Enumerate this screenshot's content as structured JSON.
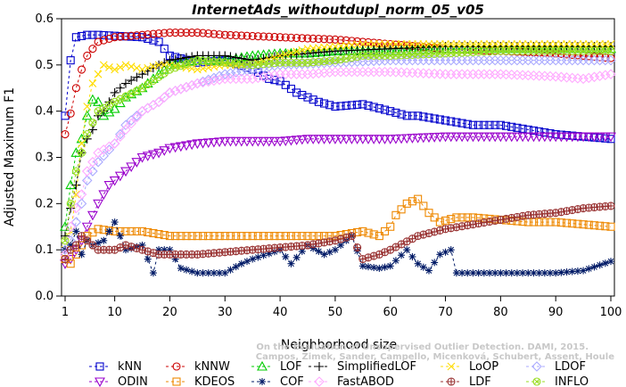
{
  "watermark": {
    "line1": "Campos, Zimek, Sander, Campello, Micenková, Schubert, Assent, Houle",
    "line2": "On the Evaluation of Unsupervised Outlier Detection. DAMI, 2015."
  },
  "chart_data": {
    "type": "line",
    "title": "InternetAds_withoutdupl_norm_05_v05",
    "xlabel": "Neighborhood size",
    "ylabel": "Adjusted Maximum F1",
    "xlim": [
      1,
      100
    ],
    "ylim": [
      0.0,
      0.6
    ],
    "xticks": [
      1,
      10,
      20,
      30,
      40,
      50,
      60,
      70,
      80,
      90,
      100
    ],
    "yticks": [
      "0.0",
      "0.1",
      "0.2",
      "0.3",
      "0.4",
      "0.5",
      "0.6"
    ],
    "grid": false,
    "legend_position": "bottom",
    "series": [
      {
        "name": "kNN",
        "color": "#0000cc",
        "marker": "square",
        "points": [
          [
            1,
            0.39
          ],
          [
            2,
            0.51
          ],
          [
            3,
            0.56
          ],
          [
            5,
            0.565
          ],
          [
            7,
            0.565
          ],
          [
            10,
            0.563
          ],
          [
            15,
            0.56
          ],
          [
            18,
            0.55
          ],
          [
            20,
            0.52
          ],
          [
            25,
            0.505
          ],
          [
            30,
            0.51
          ],
          [
            35,
            0.49
          ],
          [
            38,
            0.47
          ],
          [
            40,
            0.465
          ],
          [
            43,
            0.44
          ],
          [
            47,
            0.42
          ],
          [
            50,
            0.41
          ],
          [
            55,
            0.415
          ],
          [
            60,
            0.4
          ],
          [
            63,
            0.39
          ],
          [
            65,
            0.39
          ],
          [
            70,
            0.38
          ],
          [
            75,
            0.37
          ],
          [
            80,
            0.37
          ],
          [
            85,
            0.36
          ],
          [
            90,
            0.35
          ],
          [
            95,
            0.345
          ],
          [
            100,
            0.34
          ]
        ]
      },
      {
        "name": "kNNW",
        "color": "#cc0000",
        "marker": "circle",
        "points": [
          [
            1,
            0.35
          ],
          [
            2,
            0.395
          ],
          [
            3,
            0.45
          ],
          [
            4,
            0.49
          ],
          [
            5,
            0.52
          ],
          [
            7,
            0.55
          ],
          [
            10,
            0.56
          ],
          [
            15,
            0.565
          ],
          [
            20,
            0.57
          ],
          [
            25,
            0.57
          ],
          [
            30,
            0.565
          ],
          [
            40,
            0.56
          ],
          [
            50,
            0.555
          ],
          [
            60,
            0.545
          ],
          [
            70,
            0.535
          ],
          [
            80,
            0.53
          ],
          [
            90,
            0.525
          ],
          [
            100,
            0.515
          ]
        ]
      },
      {
        "name": "LOF",
        "color": "#00cc00",
        "marker": "triangle-up",
        "points": [
          [
            1,
            0.15
          ],
          [
            2,
            0.24
          ],
          [
            3,
            0.31
          ],
          [
            4,
            0.34
          ],
          [
            5,
            0.39
          ],
          [
            6,
            0.425
          ],
          [
            7,
            0.42
          ],
          [
            8,
            0.39
          ],
          [
            10,
            0.405
          ],
          [
            12,
            0.43
          ],
          [
            15,
            0.45
          ],
          [
            18,
            0.48
          ],
          [
            20,
            0.5
          ],
          [
            25,
            0.51
          ],
          [
            30,
            0.51
          ],
          [
            35,
            0.52
          ],
          [
            40,
            0.525
          ],
          [
            45,
            0.525
          ],
          [
            50,
            0.53
          ],
          [
            55,
            0.53
          ],
          [
            60,
            0.53
          ],
          [
            70,
            0.535
          ],
          [
            80,
            0.535
          ],
          [
            90,
            0.535
          ],
          [
            100,
            0.535
          ]
        ]
      },
      {
        "name": "SimplifiedLOF",
        "color": "#000000",
        "marker": "plus",
        "points": [
          [
            1,
            0.13
          ],
          [
            2,
            0.19
          ],
          [
            3,
            0.24
          ],
          [
            4,
            0.31
          ],
          [
            5,
            0.34
          ],
          [
            6,
            0.36
          ],
          [
            7,
            0.39
          ],
          [
            8,
            0.4
          ],
          [
            10,
            0.44
          ],
          [
            12,
            0.46
          ],
          [
            15,
            0.48
          ],
          [
            18,
            0.5
          ],
          [
            20,
            0.51
          ],
          [
            25,
            0.52
          ],
          [
            30,
            0.52
          ],
          [
            35,
            0.51
          ],
          [
            40,
            0.52
          ],
          [
            45,
            0.525
          ],
          [
            50,
            0.53
          ],
          [
            60,
            0.535
          ],
          [
            70,
            0.54
          ],
          [
            80,
            0.54
          ],
          [
            90,
            0.54
          ],
          [
            100,
            0.54
          ]
        ]
      },
      {
        "name": "LoOP",
        "color": "#ffdd00",
        "marker": "x",
        "points": [
          [
            1,
            0.1
          ],
          [
            2,
            0.14
          ],
          [
            3,
            0.22
          ],
          [
            4,
            0.33
          ],
          [
            5,
            0.41
          ],
          [
            6,
            0.46
          ],
          [
            8,
            0.5
          ],
          [
            10,
            0.49
          ],
          [
            12,
            0.5
          ],
          [
            15,
            0.49
          ],
          [
            18,
            0.5
          ],
          [
            20,
            0.5
          ],
          [
            25,
            0.49
          ],
          [
            30,
            0.5
          ],
          [
            35,
            0.5
          ],
          [
            40,
            0.52
          ],
          [
            45,
            0.535
          ],
          [
            50,
            0.54
          ],
          [
            55,
            0.545
          ],
          [
            60,
            0.545
          ],
          [
            70,
            0.545
          ],
          [
            80,
            0.545
          ],
          [
            90,
            0.545
          ],
          [
            100,
            0.545
          ]
        ]
      },
      {
        "name": "LDOF",
        "color": "#aaaaff",
        "marker": "diamond",
        "points": [
          [
            1,
            0.1
          ],
          [
            2,
            0.12
          ],
          [
            3,
            0.16
          ],
          [
            4,
            0.2
          ],
          [
            5,
            0.25
          ],
          [
            7,
            0.29
          ],
          [
            10,
            0.33
          ],
          [
            12,
            0.37
          ],
          [
            15,
            0.4
          ],
          [
            18,
            0.42
          ],
          [
            20,
            0.44
          ],
          [
            25,
            0.46
          ],
          [
            30,
            0.48
          ],
          [
            35,
            0.49
          ],
          [
            40,
            0.5
          ],
          [
            50,
            0.505
          ],
          [
            60,
            0.51
          ],
          [
            70,
            0.51
          ],
          [
            80,
            0.51
          ],
          [
            90,
            0.51
          ],
          [
            100,
            0.51
          ]
        ]
      },
      {
        "name": "ODIN",
        "color": "#9900cc",
        "marker": "triangle-down",
        "points": [
          [
            1,
            0.07
          ],
          [
            2,
            0.08
          ],
          [
            3,
            0.1
          ],
          [
            4,
            0.12
          ],
          [
            5,
            0.15
          ],
          [
            7,
            0.2
          ],
          [
            9,
            0.24
          ],
          [
            12,
            0.27
          ],
          [
            15,
            0.3
          ],
          [
            18,
            0.31
          ],
          [
            20,
            0.32
          ],
          [
            25,
            0.33
          ],
          [
            30,
            0.335
          ],
          [
            35,
            0.335
          ],
          [
            40,
            0.335
          ],
          [
            45,
            0.34
          ],
          [
            50,
            0.34
          ],
          [
            55,
            0.34
          ],
          [
            60,
            0.34
          ],
          [
            70,
            0.345
          ],
          [
            80,
            0.345
          ],
          [
            90,
            0.345
          ],
          [
            100,
            0.345
          ]
        ]
      },
      {
        "name": "KDEOS",
        "color": "#ee8800",
        "marker": "square",
        "points": [
          [
            1,
            0.08
          ],
          [
            2,
            0.07
          ],
          [
            3,
            0.09
          ],
          [
            4,
            0.11
          ],
          [
            5,
            0.13
          ],
          [
            7,
            0.145
          ],
          [
            10,
            0.14
          ],
          [
            15,
            0.14
          ],
          [
            20,
            0.13
          ],
          [
            25,
            0.13
          ],
          [
            30,
            0.13
          ],
          [
            35,
            0.13
          ],
          [
            40,
            0.13
          ],
          [
            45,
            0.13
          ],
          [
            50,
            0.13
          ],
          [
            55,
            0.14
          ],
          [
            58,
            0.13
          ],
          [
            60,
            0.15
          ],
          [
            61,
            0.175
          ],
          [
            63,
            0.2
          ],
          [
            65,
            0.21
          ],
          [
            67,
            0.18
          ],
          [
            69,
            0.16
          ],
          [
            72,
            0.17
          ],
          [
            75,
            0.17
          ],
          [
            80,
            0.165
          ],
          [
            85,
            0.16
          ],
          [
            90,
            0.16
          ],
          [
            95,
            0.155
          ],
          [
            100,
            0.15
          ]
        ]
      },
      {
        "name": "COF",
        "color": "#001a66",
        "marker": "star",
        "points": [
          [
            1,
            0.1
          ],
          [
            2,
            0.11
          ],
          [
            3,
            0.14
          ],
          [
            4,
            0.09
          ],
          [
            5,
            0.12
          ],
          [
            6,
            0.11
          ],
          [
            8,
            0.12
          ],
          [
            10,
            0.16
          ],
          [
            12,
            0.1
          ],
          [
            15,
            0.11
          ],
          [
            17,
            0.05
          ],
          [
            18,
            0.1
          ],
          [
            20,
            0.1
          ],
          [
            22,
            0.06
          ],
          [
            25,
            0.05
          ],
          [
            30,
            0.05
          ],
          [
            33,
            0.07
          ],
          [
            35,
            0.08
          ],
          [
            40,
            0.1
          ],
          [
            42,
            0.07
          ],
          [
            45,
            0.11
          ],
          [
            48,
            0.09
          ],
          [
            50,
            0.1
          ],
          [
            53,
            0.13
          ],
          [
            55,
            0.065
          ],
          [
            58,
            0.06
          ],
          [
            60,
            0.065
          ],
          [
            63,
            0.1
          ],
          [
            65,
            0.07
          ],
          [
            67,
            0.055
          ],
          [
            69,
            0.09
          ],
          [
            71,
            0.1
          ],
          [
            72,
            0.05
          ],
          [
            75,
            0.05
          ],
          [
            80,
            0.05
          ],
          [
            85,
            0.05
          ],
          [
            90,
            0.05
          ],
          [
            95,
            0.055
          ],
          [
            100,
            0.075
          ]
        ]
      },
      {
        "name": "FastABOD",
        "color": "#ffaaff",
        "marker": "diamond",
        "points": [
          [
            1,
            0.09
          ],
          [
            2,
            0.15
          ],
          [
            3,
            0.19
          ],
          [
            4,
            0.22
          ],
          [
            5,
            0.27
          ],
          [
            7,
            0.31
          ],
          [
            10,
            0.33
          ],
          [
            12,
            0.36
          ],
          [
            15,
            0.4
          ],
          [
            18,
            0.42
          ],
          [
            20,
            0.44
          ],
          [
            25,
            0.46
          ],
          [
            30,
            0.47
          ],
          [
            35,
            0.47
          ],
          [
            40,
            0.48
          ],
          [
            45,
            0.48
          ],
          [
            50,
            0.485
          ],
          [
            60,
            0.485
          ],
          [
            70,
            0.48
          ],
          [
            80,
            0.48
          ],
          [
            90,
            0.475
          ],
          [
            95,
            0.47
          ],
          [
            100,
            0.48
          ]
        ]
      },
      {
        "name": "LDF",
        "color": "#993333",
        "marker": "circle-plus",
        "points": [
          [
            1,
            0.08
          ],
          [
            2,
            0.1
          ],
          [
            3,
            0.11
          ],
          [
            4,
            0.13
          ],
          [
            5,
            0.12
          ],
          [
            7,
            0.1
          ],
          [
            10,
            0.1
          ],
          [
            12,
            0.11
          ],
          [
            15,
            0.1
          ],
          [
            18,
            0.09
          ],
          [
            20,
            0.09
          ],
          [
            25,
            0.09
          ],
          [
            30,
            0.095
          ],
          [
            35,
            0.1
          ],
          [
            40,
            0.105
          ],
          [
            45,
            0.11
          ],
          [
            50,
            0.12
          ],
          [
            53,
            0.13
          ],
          [
            55,
            0.08
          ],
          [
            58,
            0.09
          ],
          [
            60,
            0.1
          ],
          [
            65,
            0.13
          ],
          [
            70,
            0.145
          ],
          [
            75,
            0.155
          ],
          [
            80,
            0.165
          ],
          [
            85,
            0.175
          ],
          [
            90,
            0.18
          ],
          [
            95,
            0.19
          ],
          [
            100,
            0.195
          ]
        ]
      },
      {
        "name": "INFLO",
        "color": "#99dd22",
        "marker": "circle-x",
        "points": [
          [
            1,
            0.12
          ],
          [
            2,
            0.2
          ],
          [
            3,
            0.27
          ],
          [
            4,
            0.31
          ],
          [
            5,
            0.35
          ],
          [
            7,
            0.4
          ],
          [
            10,
            0.42
          ],
          [
            15,
            0.45
          ],
          [
            20,
            0.49
          ],
          [
            25,
            0.51
          ],
          [
            30,
            0.505
          ],
          [
            35,
            0.5
          ],
          [
            40,
            0.505
          ],
          [
            45,
            0.505
          ],
          [
            50,
            0.51
          ],
          [
            55,
            0.52
          ],
          [
            60,
            0.52
          ],
          [
            70,
            0.525
          ],
          [
            80,
            0.53
          ],
          [
            90,
            0.53
          ],
          [
            100,
            0.53
          ]
        ]
      }
    ]
  }
}
